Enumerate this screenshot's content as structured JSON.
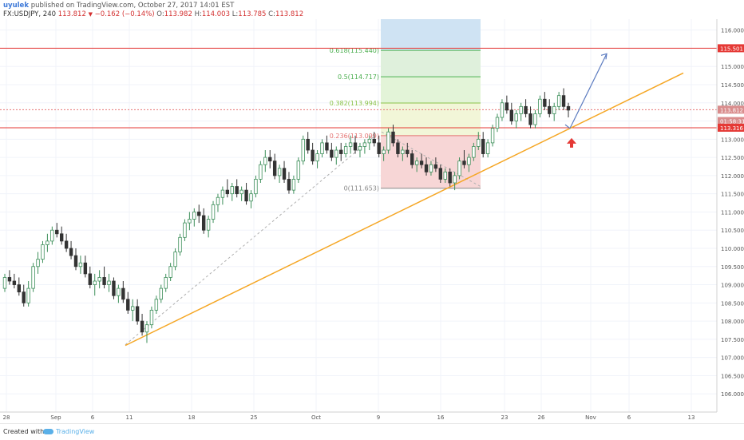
{
  "header": {
    "author": "uyulek",
    "published": "published on TradingView.com, October 27, 2017 14:01 EST",
    "symbol_line": "FX:USDJPY, 240",
    "last": "113.812",
    "change": "−0.162 (−0.14%)",
    "O": "113.982",
    "H": "114.003",
    "L": "113.785",
    "C": "113.812"
  },
  "footer": {
    "created_with": "Created with",
    "brand": "TradingView"
  },
  "chart_data": {
    "type": "candlestick",
    "ylim": [
      105.5,
      116.3
    ],
    "yticks": [
      "106.000",
      "106.500",
      "107.000",
      "107.500",
      "108.000",
      "108.500",
      "109.000",
      "109.500",
      "110.000",
      "110.500",
      "111.000",
      "111.500",
      "112.000",
      "112.500",
      "113.000",
      "113.500",
      "114.000",
      "114.500",
      "115.000",
      "115.500",
      "116.000"
    ],
    "xticks": [
      "28",
      "Sep",
      "6",
      "11",
      "18",
      "25",
      "Oct",
      "9",
      "16",
      "23",
      "26",
      "Nov",
      "6",
      "13"
    ],
    "price_labels": [
      {
        "text": "115.501",
        "value": 115.501,
        "color": "#e53935"
      },
      {
        "text": "113.812",
        "value": 113.812,
        "color": "#d98c8c"
      },
      {
        "text": "01:58:31",
        "value": 113.5,
        "color": "#d98c8c"
      },
      {
        "text": "113.316",
        "value": 113.316,
        "color": "#e53935"
      }
    ],
    "horizontal_lines": [
      {
        "value": 115.501,
        "color": "#e53935"
      },
      {
        "value": 113.316,
        "color": "#e53935"
      },
      {
        "value": 113.812,
        "color": "#e57373",
        "dashed": true
      }
    ],
    "fib_levels": [
      {
        "label": "0.618(115.440)",
        "value": 115.44,
        "color": "#4caf50"
      },
      {
        "label": "0.5(114.717)",
        "value": 114.717,
        "color": "#4caf50"
      },
      {
        "label": "0.382(113.994)",
        "value": 113.994,
        "color": "#8bc34a"
      },
      {
        "label": "0.236(113.099)",
        "value": 113.099,
        "color": "#e57373"
      },
      {
        "label": "0(111.653)",
        "value": 111.653,
        "color": "#888888"
      }
    ],
    "trendline": {
      "start": [
        157,
        107.33
      ],
      "end": [
        856,
        114.82
      ],
      "color": "#f5a623"
    },
    "candles": [
      [
        108.9,
        109.3,
        108.8,
        109.2
      ],
      [
        109.2,
        109.4,
        109.0,
        109.1
      ],
      [
        109.1,
        109.3,
        108.9,
        109.0
      ],
      [
        109.0,
        109.2,
        108.7,
        108.8
      ],
      [
        108.8,
        109.0,
        108.4,
        108.5
      ],
      [
        108.5,
        109.1,
        108.4,
        108.9
      ],
      [
        108.9,
        109.6,
        108.8,
        109.5
      ],
      [
        109.5,
        109.9,
        109.3,
        109.7
      ],
      [
        109.7,
        110.2,
        109.6,
        110.1
      ],
      [
        110.1,
        110.4,
        109.9,
        110.2
      ],
      [
        110.2,
        110.6,
        110.1,
        110.5
      ],
      [
        110.5,
        110.7,
        110.3,
        110.4
      ],
      [
        110.4,
        110.6,
        110.1,
        110.2
      ],
      [
        110.2,
        110.4,
        109.9,
        110.0
      ],
      [
        110.0,
        110.2,
        109.7,
        109.8
      ],
      [
        109.8,
        110.0,
        109.4,
        109.5
      ],
      [
        109.5,
        109.8,
        109.3,
        109.6
      ],
      [
        109.6,
        109.8,
        109.2,
        109.3
      ],
      [
        109.3,
        109.5,
        108.9,
        109.0
      ],
      [
        109.0,
        109.3,
        108.7,
        109.1
      ],
      [
        109.1,
        109.4,
        108.9,
        109.2
      ],
      [
        109.2,
        109.5,
        108.9,
        109.0
      ],
      [
        109.0,
        109.3,
        108.8,
        109.1
      ],
      [
        109.1,
        109.2,
        108.6,
        108.7
      ],
      [
        108.7,
        109.0,
        108.5,
        108.9
      ],
      [
        108.9,
        109.1,
        108.5,
        108.6
      ],
      [
        108.6,
        108.8,
        108.2,
        108.3
      ],
      [
        108.3,
        108.6,
        108.0,
        108.4
      ],
      [
        108.4,
        108.6,
        107.9,
        108.0
      ],
      [
        108.0,
        108.2,
        107.6,
        107.7
      ],
      [
        107.7,
        108.0,
        107.4,
        107.9
      ],
      [
        107.9,
        108.4,
        107.8,
        108.3
      ],
      [
        108.3,
        108.7,
        108.2,
        108.6
      ],
      [
        108.6,
        109.0,
        108.5,
        108.9
      ],
      [
        108.9,
        109.3,
        108.8,
        109.2
      ],
      [
        109.2,
        109.6,
        109.1,
        109.5
      ],
      [
        109.5,
        110.0,
        109.4,
        109.9
      ],
      [
        109.9,
        110.4,
        109.8,
        110.3
      ],
      [
        110.3,
        110.8,
        110.2,
        110.7
      ],
      [
        110.7,
        111.0,
        110.5,
        110.8
      ],
      [
        110.8,
        111.1,
        110.6,
        111.0
      ],
      [
        111.0,
        111.2,
        110.7,
        110.9
      ],
      [
        110.9,
        111.1,
        110.4,
        110.5
      ],
      [
        110.5,
        110.9,
        110.3,
        110.8
      ],
      [
        110.8,
        111.3,
        110.7,
        111.2
      ],
      [
        111.2,
        111.5,
        111.0,
        111.4
      ],
      [
        111.4,
        111.7,
        111.2,
        111.6
      ],
      [
        111.6,
        111.9,
        111.4,
        111.5
      ],
      [
        111.5,
        111.8,
        111.3,
        111.7
      ],
      [
        111.7,
        111.9,
        111.4,
        111.5
      ],
      [
        111.5,
        111.7,
        111.3,
        111.6
      ],
      [
        111.6,
        111.8,
        111.2,
        111.3
      ],
      [
        111.3,
        111.6,
        111.1,
        111.5
      ],
      [
        111.5,
        112.0,
        111.4,
        111.9
      ],
      [
        111.9,
        112.4,
        111.8,
        112.3
      ],
      [
        112.3,
        112.7,
        112.1,
        112.5
      ],
      [
        112.5,
        112.7,
        112.2,
        112.4
      ],
      [
        112.4,
        112.6,
        111.9,
        112.0
      ],
      [
        112.0,
        112.3,
        111.8,
        112.2
      ],
      [
        112.2,
        112.4,
        111.8,
        111.9
      ],
      [
        111.9,
        112.1,
        111.5,
        111.6
      ],
      [
        111.6,
        112.0,
        111.5,
        111.9
      ],
      [
        111.9,
        112.5,
        111.8,
        112.4
      ],
      [
        112.4,
        113.1,
        112.3,
        113.0
      ],
      [
        113.0,
        113.2,
        112.6,
        112.7
      ],
      [
        112.7,
        112.9,
        112.3,
        112.4
      ],
      [
        112.4,
        112.7,
        112.2,
        112.6
      ],
      [
        112.6,
        113.0,
        112.5,
        112.9
      ],
      [
        112.9,
        113.1,
        112.6,
        112.7
      ],
      [
        112.7,
        112.9,
        112.4,
        112.5
      ],
      [
        112.5,
        112.8,
        112.3,
        112.7
      ],
      [
        112.7,
        112.9,
        112.4,
        112.6
      ],
      [
        112.6,
        112.9,
        112.5,
        112.8
      ],
      [
        112.8,
        113.1,
        112.6,
        112.9
      ],
      [
        112.9,
        113.1,
        112.6,
        112.7
      ],
      [
        112.7,
        112.9,
        112.5,
        112.8
      ],
      [
        112.8,
        113.0,
        112.6,
        112.9
      ],
      [
        112.9,
        113.1,
        112.7,
        113.0
      ],
      [
        113.0,
        113.2,
        112.8,
        112.9
      ],
      [
        112.9,
        113.1,
        112.5,
        112.6
      ],
      [
        112.6,
        112.8,
        112.4,
        112.7
      ],
      [
        112.7,
        113.3,
        112.6,
        113.2
      ],
      [
        113.2,
        113.4,
        112.8,
        112.9
      ],
      [
        112.9,
        113.0,
        112.5,
        112.6
      ],
      [
        112.6,
        112.8,
        112.4,
        112.7
      ],
      [
        112.7,
        112.9,
        112.5,
        112.6
      ],
      [
        112.6,
        112.7,
        112.2,
        112.3
      ],
      [
        112.3,
        112.5,
        112.1,
        112.4
      ],
      [
        112.4,
        112.6,
        112.2,
        112.3
      ],
      [
        112.3,
        112.5,
        112.0,
        112.1
      ],
      [
        112.1,
        112.4,
        112.0,
        112.3
      ],
      [
        112.3,
        112.5,
        112.1,
        112.2
      ],
      [
        112.2,
        112.3,
        111.8,
        111.9
      ],
      [
        111.9,
        112.2,
        111.8,
        112.1
      ],
      [
        112.1,
        112.2,
        111.7,
        111.8
      ],
      [
        111.8,
        112.1,
        111.6,
        112.0
      ],
      [
        112.0,
        112.5,
        111.9,
        112.4
      ],
      [
        112.4,
        112.7,
        112.2,
        112.3
      ],
      [
        112.3,
        112.6,
        112.1,
        112.5
      ],
      [
        112.5,
        112.9,
        112.4,
        112.8
      ],
      [
        112.8,
        113.2,
        112.7,
        113.0
      ],
      [
        113.0,
        113.2,
        112.5,
        112.6
      ],
      [
        112.6,
        113.0,
        112.5,
        112.9
      ],
      [
        112.9,
        113.4,
        112.8,
        113.3
      ],
      [
        113.3,
        113.7,
        113.2,
        113.6
      ],
      [
        113.6,
        114.1,
        113.5,
        114.0
      ],
      [
        114.0,
        114.2,
        113.7,
        113.8
      ],
      [
        113.8,
        114.0,
        113.4,
        113.5
      ],
      [
        113.5,
        113.8,
        113.3,
        113.7
      ],
      [
        113.7,
        114.0,
        113.5,
        113.9
      ],
      [
        113.9,
        114.1,
        113.6,
        113.7
      ],
      [
        113.7,
        113.9,
        113.3,
        113.4
      ],
      [
        113.4,
        113.8,
        113.3,
        113.7
      ],
      [
        113.7,
        114.2,
        113.6,
        114.1
      ],
      [
        114.1,
        114.3,
        113.8,
        113.9
      ],
      [
        113.9,
        114.1,
        113.6,
        113.7
      ],
      [
        113.7,
        114.0,
        113.5,
        113.9
      ],
      [
        113.9,
        114.3,
        113.8,
        114.2
      ],
      [
        114.2,
        114.4,
        113.8,
        113.9
      ],
      [
        113.9,
        114.0,
        113.6,
        113.8
      ]
    ],
    "fib_zone_start": 477,
    "fib_zone_end": 602,
    "projection_arrow": {
      "from": [
        708,
        113.4
      ],
      "to": [
        714,
        113.3
      ],
      "up_to": [
        760,
        115.35
      ]
    },
    "up_arrow_value": 112.9,
    "watermark": "© ©"
  }
}
